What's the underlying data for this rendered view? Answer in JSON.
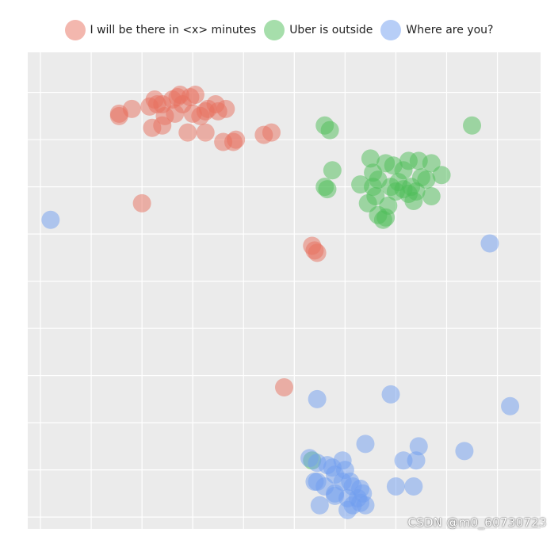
{
  "chart_data": {
    "type": "scatter",
    "title": "",
    "xlabel": "",
    "ylabel": "",
    "xlim": [
      -0.5,
      19.7
    ],
    "ylim": [
      -0.5,
      19.7
    ],
    "grid": true,
    "tick_labels_shown": false,
    "legend_position": "top-center",
    "series": [
      {
        "name": "I will be there in <x> minutes",
        "color": "#e8705e",
        "points": [
          [
            3.1,
            17.1
          ],
          [
            3.6,
            17.3
          ],
          [
            3.1,
            17.0
          ],
          [
            4.3,
            17.4
          ],
          [
            4.5,
            17.7
          ],
          [
            4.8,
            17.5
          ],
          [
            5.2,
            17.7
          ],
          [
            5.4,
            17.8
          ],
          [
            5.5,
            17.9
          ],
          [
            4.6,
            17.5
          ],
          [
            5.6,
            17.5
          ],
          [
            5.9,
            17.8
          ],
          [
            6.1,
            17.9
          ],
          [
            6.6,
            17.3
          ],
          [
            7.0,
            17.2
          ],
          [
            6.5,
            17.2
          ],
          [
            6.3,
            17.0
          ],
          [
            6.0,
            17.1
          ],
          [
            5.3,
            17.1
          ],
          [
            7.3,
            17.3
          ],
          [
            6.9,
            17.5
          ],
          [
            4.9,
            17.0
          ],
          [
            4.4,
            16.5
          ],
          [
            4.8,
            16.6
          ],
          [
            5.8,
            16.3
          ],
          [
            6.5,
            16.3
          ],
          [
            7.2,
            15.9
          ],
          [
            7.6,
            15.9
          ],
          [
            7.7,
            16.0
          ],
          [
            8.8,
            16.2
          ],
          [
            9.1,
            16.3
          ],
          [
            4.0,
            13.3
          ],
          [
            10.7,
            11.5
          ],
          [
            10.8,
            11.3
          ],
          [
            10.9,
            11.2
          ],
          [
            9.6,
            5.5
          ]
        ]
      },
      {
        "name": "Uber is outside",
        "color": "#4dbd57",
        "points": [
          [
            11.2,
            16.6
          ],
          [
            11.4,
            16.4
          ],
          [
            17.0,
            16.6
          ],
          [
            11.5,
            14.7
          ],
          [
            13.0,
            15.2
          ],
          [
            13.6,
            15.0
          ],
          [
            13.9,
            14.9
          ],
          [
            14.3,
            14.7
          ],
          [
            14.5,
            15.1
          ],
          [
            14.9,
            15.1
          ],
          [
            15.4,
            15.0
          ],
          [
            13.1,
            14.6
          ],
          [
            13.3,
            14.3
          ],
          [
            14.1,
            14.2
          ],
          [
            14.6,
            14.0
          ],
          [
            15.0,
            14.4
          ],
          [
            15.2,
            14.3
          ],
          [
            15.8,
            14.5
          ],
          [
            12.6,
            14.1
          ],
          [
            13.1,
            14.0
          ],
          [
            13.8,
            14.0
          ],
          [
            14.3,
            13.9
          ],
          [
            14.8,
            13.8
          ],
          [
            11.3,
            13.9
          ],
          [
            11.2,
            14.0
          ],
          [
            13.2,
            13.6
          ],
          [
            14.0,
            13.8
          ],
          [
            14.7,
            13.4
          ],
          [
            15.4,
            13.6
          ],
          [
            13.7,
            13.2
          ],
          [
            12.9,
            13.3
          ],
          [
            13.3,
            12.8
          ],
          [
            13.6,
            12.7
          ],
          [
            13.5,
            12.6
          ],
          [
            14.5,
            13.7
          ],
          [
            10.7,
            2.4
          ]
        ]
      },
      {
        "name": "Where are you?",
        "color": "#6f9ef0",
        "points": [
          [
            0.4,
            12.6
          ],
          [
            17.7,
            11.6
          ],
          [
            10.9,
            5.0
          ],
          [
            13.8,
            5.2
          ],
          [
            18.5,
            4.7
          ],
          [
            12.8,
            3.1
          ],
          [
            14.9,
            3.0
          ],
          [
            16.7,
            2.8
          ],
          [
            14.3,
            2.4
          ],
          [
            14.8,
            2.4
          ],
          [
            10.6,
            2.5
          ],
          [
            10.9,
            2.3
          ],
          [
            11.3,
            2.2
          ],
          [
            11.9,
            2.4
          ],
          [
            11.5,
            2.1
          ],
          [
            12.0,
            2.0
          ],
          [
            11.6,
            1.8
          ],
          [
            11.9,
            1.5
          ],
          [
            12.3,
            1.3
          ],
          [
            12.6,
            1.2
          ],
          [
            12.7,
            1.0
          ],
          [
            12.5,
            0.8
          ],
          [
            12.1,
            0.8
          ],
          [
            11.6,
            1.0
          ],
          [
            11.2,
            1.3
          ],
          [
            10.9,
            1.5
          ],
          [
            10.8,
            1.5
          ],
          [
            11.0,
            0.5
          ],
          [
            12.1,
            0.3
          ],
          [
            12.6,
            0.6
          ],
          [
            12.8,
            0.5
          ],
          [
            14.0,
            1.3
          ],
          [
            14.7,
            1.3
          ],
          [
            12.3,
            0.5
          ],
          [
            11.6,
            0.9
          ],
          [
            12.2,
            1.5
          ]
        ]
      }
    ]
  },
  "watermark": "CSDN @m0_60730723"
}
